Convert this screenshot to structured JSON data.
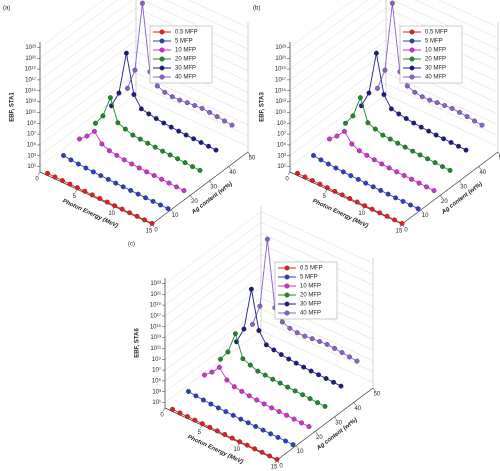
{
  "chart_data": [
    {
      "type": "line3d",
      "panel_label": "(a)",
      "ylabel": "EBF, STA1",
      "xlabel": "Photon Energy (MeV)",
      "zlabel": "Ag content (wt%)",
      "log_y": true,
      "grid": true,
      "x": [
        1,
        2,
        3,
        4,
        5,
        6,
        7,
        8,
        9,
        10,
        11,
        12,
        13,
        14,
        15
      ],
      "xlim": [
        0,
        15
      ],
      "xticks": [
        0,
        5,
        10,
        15
      ],
      "zlim": [
        0,
        50
      ],
      "zticks": [
        0,
        10,
        20,
        30,
        40,
        50
      ],
      "ylim": [
        1,
        1e+24
      ],
      "yticks": [
        {
          "value": 10.0,
          "label": "10¹"
        },
        {
          "value": 1000.0,
          "label": "10³"
        },
        {
          "value": 100000.0,
          "label": "10⁵"
        },
        {
          "value": 10000000.0,
          "label": "10⁷"
        },
        {
          "value": 1000000000.0,
          "label": "10⁹"
        },
        {
          "value": 100000000000.0,
          "label": "10¹¹"
        },
        {
          "value": 10000000000000.0,
          "label": "10¹³"
        },
        {
          "value": 1000000000000000.0,
          "label": "10¹⁵"
        },
        {
          "value": 1e+17,
          "label": "10¹⁷"
        },
        {
          "value": 1e+19,
          "label": "10¹⁹"
        },
        {
          "value": 1e+21,
          "label": "10²¹"
        },
        {
          "value": 1e+23,
          "label": "10²³"
        }
      ],
      "series": [
        {
          "name": "0.5 MFP",
          "color": "#e0201c",
          "values": [
            2.5,
            2.3,
            2.2,
            2.1,
            2,
            1.9,
            1.8,
            1.7,
            1.6,
            1.5,
            1.5,
            1.4,
            1.4,
            1.3,
            1.3
          ]
        },
        {
          "name": "5  MFP",
          "color": "#2a3fc0",
          "values": [
            30,
            20,
            15,
            12,
            10,
            9,
            8,
            7,
            6.5,
            6,
            5.5,
            5,
            4.8,
            4.5,
            4.2
          ]
        },
        {
          "name": "10 MFP",
          "color": "#cc33cc",
          "values": [
            200,
            3000,
            100000,
            2000,
            500,
            300,
            200,
            150,
            120,
            100,
            90,
            80,
            70,
            60,
            55
          ]
        },
        {
          "name": "20 MFP",
          "color": "#1a8a2a",
          "values": [
            1000,
            100000,
            1000000000.0,
            100000,
            30000,
            10000,
            8000,
            6000,
            5000,
            4000,
            3500,
            3000,
            2500,
            2000,
            1800
          ]
        },
        {
          "name": "30 MFP",
          "color": "#1c1c85",
          "values": [
            10000,
            10000000.0,
            1000000000000000.0,
            100000000.0,
            1000000.0,
            500000,
            300000,
            200000,
            150000,
            120000,
            100000,
            90000,
            80000,
            70000,
            60000
          ]
        },
        {
          "name": "40 MFP",
          "color": "#8a5fd0",
          "values": [
            100000,
            1000000000.0,
            1e+22,
            10000000000.0,
            100000000.0,
            30000000.0,
            20000000.0,
            20000000.0,
            30000000.0,
            40000000.0,
            50000000.0,
            40000000.0,
            30000000.0,
            20000000.0,
            15000000.0
          ]
        }
      ]
    },
    {
      "type": "line3d",
      "panel_label": "(b)",
      "ylabel": "EBF, STA3",
      "xlabel": "Photon Energy (MeV)",
      "zlabel": "Ag content (wt%)",
      "log_y": true,
      "grid": true,
      "x": [
        1,
        2,
        3,
        4,
        5,
        6,
        7,
        8,
        9,
        10,
        11,
        12,
        13,
        14,
        15
      ],
      "xlim": [
        0,
        15
      ],
      "xticks": [
        0,
        5,
        10,
        15
      ],
      "zlim": [
        0,
        50
      ],
      "zticks": [
        0,
        10,
        20,
        30,
        40,
        50
      ],
      "ylim": [
        1,
        1e+24
      ],
      "yticks": [
        {
          "value": 10.0,
          "label": "10¹"
        },
        {
          "value": 1000.0,
          "label": "10³"
        },
        {
          "value": 100000.0,
          "label": "10⁵"
        },
        {
          "value": 10000000.0,
          "label": "10⁷"
        },
        {
          "value": 1000000000.0,
          "label": "10⁹"
        },
        {
          "value": 100000000000.0,
          "label": "10¹¹"
        },
        {
          "value": 10000000000000.0,
          "label": "10¹³"
        },
        {
          "value": 1000000000000000.0,
          "label": "10¹⁵"
        },
        {
          "value": 1e+17,
          "label": "10¹⁷"
        },
        {
          "value": 1e+19,
          "label": "10¹⁹"
        },
        {
          "value": 1e+21,
          "label": "10²¹"
        },
        {
          "value": 1e+23,
          "label": "10²³"
        }
      ],
      "series": [
        {
          "name": "0.5 MFP",
          "color": "#e0201c",
          "values": [
            2.5,
            2.3,
            2.2,
            2.1,
            2,
            1.9,
            1.8,
            1.7,
            1.6,
            1.5,
            1.5,
            1.4,
            1.4,
            1.3,
            1.3
          ]
        },
        {
          "name": "5  MFP",
          "color": "#2a3fc0",
          "values": [
            30,
            20,
            15,
            12,
            10,
            9,
            8,
            7,
            6.5,
            6,
            5.5,
            5,
            4.8,
            4.5,
            4.2
          ]
        },
        {
          "name": "10 MFP",
          "color": "#cc33cc",
          "values": [
            200,
            3000,
            100000,
            2000,
            500,
            300,
            200,
            150,
            120,
            100,
            90,
            80,
            70,
            60,
            55
          ]
        },
        {
          "name": "20 MFP",
          "color": "#1a8a2a",
          "values": [
            1000,
            100000,
            1000000000.0,
            100000,
            30000,
            10000,
            8000,
            6000,
            5000,
            4000,
            3500,
            3000,
            2500,
            2000,
            1800
          ]
        },
        {
          "name": "30 MFP",
          "color": "#1c1c85",
          "values": [
            10000,
            10000000.0,
            1000000000000000.0,
            100000000.0,
            1000000.0,
            500000,
            300000,
            200000,
            150000,
            120000,
            100000,
            90000,
            80000,
            70000,
            60000
          ]
        },
        {
          "name": "40 MFP",
          "color": "#8a5fd0",
          "values": [
            100000,
            1000000000.0,
            1e+22,
            10000000000.0,
            100000000.0,
            30000000.0,
            20000000.0,
            20000000.0,
            30000000.0,
            40000000.0,
            50000000.0,
            40000000.0,
            30000000.0,
            20000000.0,
            15000000.0
          ]
        }
      ]
    },
    {
      "type": "line3d",
      "panel_label": "(c)",
      "ylabel": "EBF, STA6",
      "xlabel": "Photon Energy (MeV)",
      "zlabel": "Ag content (wt%)",
      "log_y": true,
      "grid": true,
      "x": [
        1,
        2,
        3,
        4,
        5,
        6,
        7,
        8,
        9,
        10,
        11,
        12,
        13,
        14,
        15
      ],
      "xlim": [
        0,
        15
      ],
      "xticks": [
        0,
        5,
        10,
        15
      ],
      "zlim": [
        0,
        50
      ],
      "zticks": [
        0,
        10,
        20,
        30,
        40,
        50
      ],
      "ylim": [
        1,
        1e+24
      ],
      "yticks": [
        {
          "value": 10.0,
          "label": "10¹"
        },
        {
          "value": 1000.0,
          "label": "10³"
        },
        {
          "value": 100000.0,
          "label": "10⁵"
        },
        {
          "value": 10000000.0,
          "label": "10⁷"
        },
        {
          "value": 1000000000.0,
          "label": "10⁹"
        },
        {
          "value": 100000000000.0,
          "label": "10¹¹"
        },
        {
          "value": 10000000000000.0,
          "label": "10¹³"
        },
        {
          "value": 1000000000000000.0,
          "label": "10¹⁵"
        },
        {
          "value": 1e+17,
          "label": "10¹⁷"
        },
        {
          "value": 1e+19,
          "label": "10¹⁹"
        },
        {
          "value": 1e+21,
          "label": "10²¹"
        },
        {
          "value": 1e+23,
          "label": "10²³"
        }
      ],
      "series": [
        {
          "name": "0.5 MFP",
          "color": "#e0201c",
          "values": [
            2.5,
            2.3,
            2.2,
            2.1,
            2,
            1.9,
            1.8,
            1.7,
            1.6,
            1.5,
            1.5,
            1.4,
            1.4,
            1.3,
            1.3
          ]
        },
        {
          "name": "5  MFP",
          "color": "#2a3fc0",
          "values": [
            30,
            20,
            15,
            12,
            10,
            9,
            8,
            7,
            6.5,
            6,
            5.5,
            5,
            4.8,
            4.5,
            4.2
          ]
        },
        {
          "name": "10 MFP",
          "color": "#cc33cc",
          "values": [
            200,
            3000,
            100000,
            2000,
            500,
            300,
            200,
            150,
            120,
            100,
            90,
            80,
            70,
            60,
            55
          ]
        },
        {
          "name": "20 MFP",
          "color": "#1a8a2a",
          "values": [
            1000,
            100000,
            1000000000.0,
            100000,
            30000,
            10000,
            8000,
            6000,
            5000,
            4000,
            3500,
            3000,
            2500,
            2000,
            1800
          ]
        },
        {
          "name": "30 MFP",
          "color": "#1c1c85",
          "values": [
            10000,
            10000000.0,
            1000000000000000.0,
            100000000.0,
            1000000.0,
            500000,
            300000,
            200000,
            150000,
            120000,
            100000,
            90000,
            80000,
            70000,
            60000
          ]
        },
        {
          "name": "40 MFP",
          "color": "#8a5fd0",
          "values": [
            100000,
            1000000000.0,
            1e+22,
            10000000000.0,
            100000000.0,
            30000000.0,
            20000000.0,
            20000000.0,
            30000000.0,
            40000000.0,
            50000000.0,
            40000000.0,
            30000000.0,
            20000000.0,
            15000000.0
          ]
        }
      ]
    }
  ]
}
